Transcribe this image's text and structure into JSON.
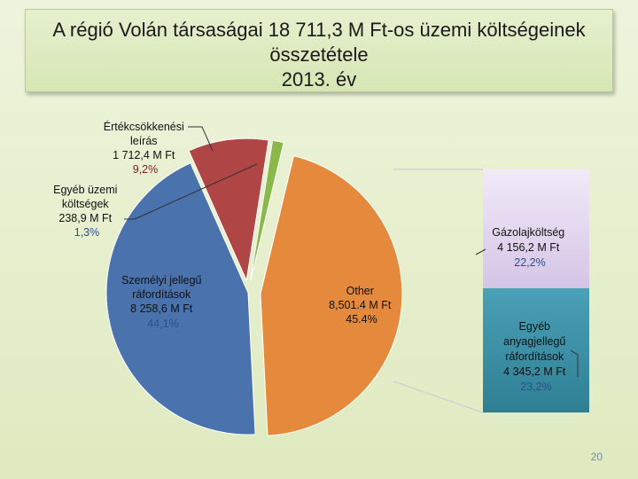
{
  "title": {
    "line1": "A régió Volán társaságai 18 711,3 M Ft-os üzemi költségeinek",
    "line2": "összetétele",
    "line3": "2013. év"
  },
  "chart_data": {
    "type": "pie",
    "slices": [
      {
        "key": "ertekcsokkenes",
        "lines": [
          "Értékcsökkenési",
          "leírás",
          "1 712,4 M Ft"
        ],
        "pct_text": "9,2%",
        "value": 1712.4,
        "percent": 9.2,
        "color": "#b04545"
      },
      {
        "key": "egyeb_uzemi",
        "lines": [
          "Egyéb üzemi",
          "költségek",
          "238,9 M Ft"
        ],
        "pct_text": "1,3%",
        "value": 238.9,
        "percent": 1.3,
        "color": "#8ab84a"
      },
      {
        "key": "other",
        "lines": [
          "Other",
          "8,501.4 M Ft",
          "45.4%"
        ],
        "pct_text": "",
        "value": 8501.4,
        "percent": 45.4,
        "color": "#e5893c"
      },
      {
        "key": "szemelyi",
        "lines": [
          "Személyi jellegű",
          "ráfordítások",
          "8 258,6 M Ft"
        ],
        "pct_text": "44,1%",
        "value": 8258.6,
        "percent": 44.1,
        "color": "#4a72ad"
      }
    ],
    "bar_segments": [
      {
        "key": "gazolaj",
        "lines": [
          "Gázolajköltség",
          "4 156,2 M Ft"
        ],
        "pct_text": "22,2%",
        "value": 4156.2,
        "percent": 22.2,
        "color": "#e3d6ef"
      },
      {
        "key": "egyeb_anyag",
        "lines": [
          "Egyéb",
          "anyagjellegű",
          "ráfordítások",
          "4 345,2 M Ft"
        ],
        "pct_text": "23,2%",
        "value": 4345.2,
        "percent": 23.2,
        "color": "#3f93a8"
      }
    ]
  },
  "page_number": "20"
}
